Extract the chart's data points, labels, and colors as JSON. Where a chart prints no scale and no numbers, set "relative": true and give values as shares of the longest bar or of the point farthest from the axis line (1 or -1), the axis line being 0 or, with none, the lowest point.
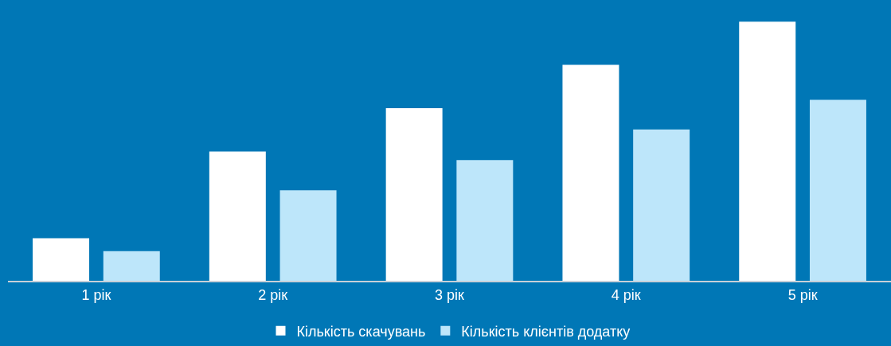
{
  "chart_data": {
    "type": "bar",
    "relative": true,
    "categories": [
      "1 рік",
      "2 рік",
      "3 рік",
      "4 рік",
      "5 рік"
    ],
    "series": [
      {
        "name": "Кількість скачувань",
        "color": "#ffffff",
        "values": [
          0.164,
          0.499,
          0.666,
          0.833,
          1.0
        ]
      },
      {
        "name": "Кількість клієнтів додатку",
        "color": "#bde6fa",
        "values": [
          0.114,
          0.349,
          0.466,
          0.584,
          0.698
        ]
      }
    ],
    "legend": "bottom"
  }
}
